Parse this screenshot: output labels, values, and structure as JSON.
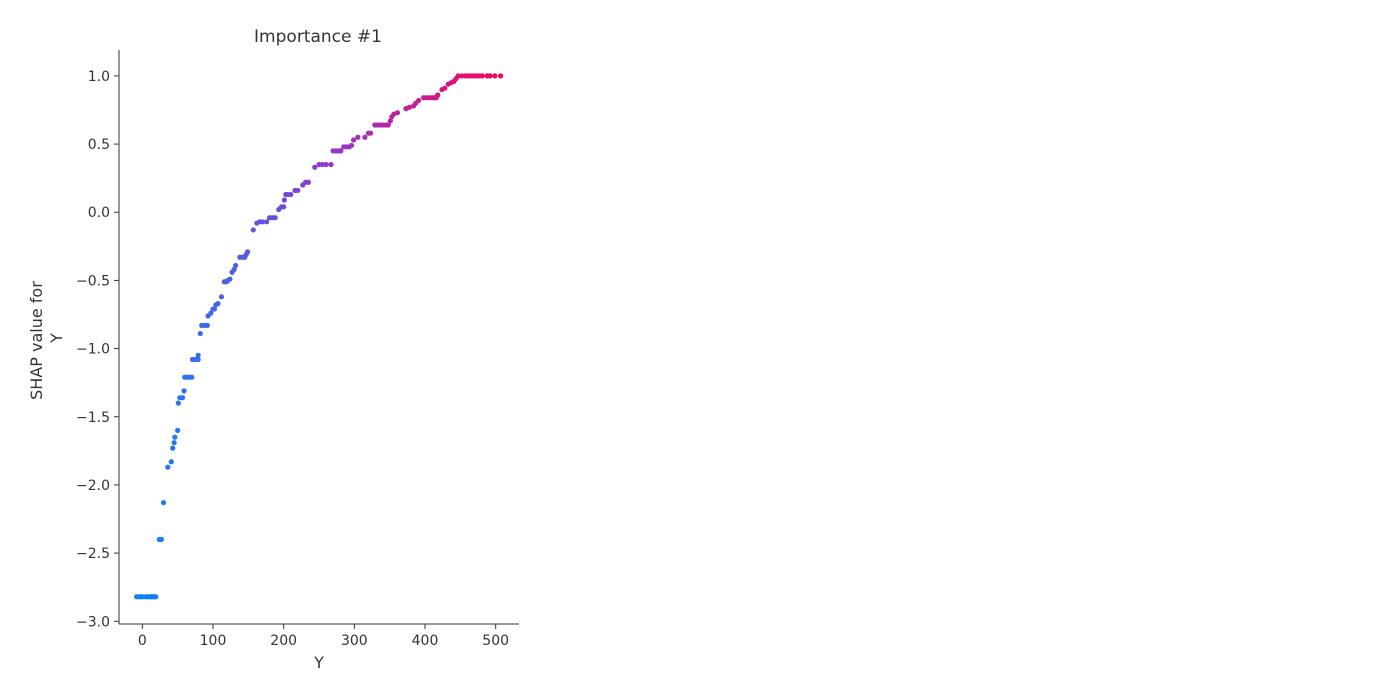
{
  "chart_data": {
    "type": "scatter",
    "title": "Importance #1",
    "xlabel": "Y",
    "ylabel_lines": [
      "SHAP value for",
      "Y"
    ],
    "xlim": [
      -33,
      533
    ],
    "ylim": [
      -3.02,
      1.19
    ],
    "xticks": [
      0,
      100,
      200,
      300,
      400,
      500
    ],
    "xtick_labels": [
      "0",
      "100",
      "200",
      "300",
      "400",
      "500"
    ],
    "yticks": [
      -3.0,
      -2.5,
      -2.0,
      -1.5,
      -1.0,
      -0.5,
      0.0,
      0.5,
      1.0
    ],
    "ytick_labels": [
      "−3.0",
      "−2.5",
      "−2.0",
      "−1.5",
      "−1.0",
      "−0.5",
      "0.0",
      "0.5",
      "1.0"
    ],
    "grid": false,
    "color_low": "#008bfb",
    "color_mid": "#8a3cd0",
    "color_high": "#ff0052",
    "points": [
      [
        -8,
        -2.82
      ],
      [
        -5,
        -2.82
      ],
      [
        -2,
        -2.82
      ],
      [
        0,
        -2.82
      ],
      [
        5,
        -2.82
      ],
      [
        8,
        -2.82
      ],
      [
        11,
        -2.82
      ],
      [
        13,
        -2.82
      ],
      [
        15,
        -2.82
      ],
      [
        17,
        -2.82
      ],
      [
        19,
        -2.82
      ],
      [
        24,
        -2.4
      ],
      [
        27,
        -2.4
      ],
      [
        30,
        -2.13
      ],
      [
        36,
        -1.87
      ],
      [
        41,
        -1.83
      ],
      [
        43,
        -1.73
      ],
      [
        45,
        -1.69
      ],
      [
        46,
        -1.65
      ],
      [
        50,
        -1.6
      ],
      [
        51,
        -1.4
      ],
      [
        53,
        -1.36
      ],
      [
        57,
        -1.36
      ],
      [
        59,
        -1.31
      ],
      [
        60,
        -1.21
      ],
      [
        62,
        -1.21
      ],
      [
        66,
        -1.21
      ],
      [
        70,
        -1.21
      ],
      [
        71,
        -1.08
      ],
      [
        75,
        -1.08
      ],
      [
        79,
        -1.08
      ],
      [
        79,
        -1.05
      ],
      [
        82,
        -0.89
      ],
      [
        84,
        -0.83
      ],
      [
        88,
        -0.83
      ],
      [
        92,
        -0.83
      ],
      [
        93,
        -0.76
      ],
      [
        97,
        -0.74
      ],
      [
        100,
        -0.71
      ],
      [
        102,
        -0.71
      ],
      [
        104,
        -0.68
      ],
      [
        107,
        -0.67
      ],
      [
        112,
        -0.62
      ],
      [
        116,
        -0.51
      ],
      [
        119,
        -0.51
      ],
      [
        121,
        -0.5
      ],
      [
        124,
        -0.49
      ],
      [
        127,
        -0.44
      ],
      [
        130,
        -0.42
      ],
      [
        132,
        -0.39
      ],
      [
        138,
        -0.33
      ],
      [
        142,
        -0.33
      ],
      [
        145,
        -0.33
      ],
      [
        147,
        -0.31
      ],
      [
        149,
        -0.29
      ],
      [
        157,
        -0.13
      ],
      [
        162,
        -0.08
      ],
      [
        166,
        -0.07
      ],
      [
        170,
        -0.07
      ],
      [
        176,
        -0.07
      ],
      [
        180,
        -0.04
      ],
      [
        184,
        -0.04
      ],
      [
        188,
        -0.04
      ],
      [
        193,
        0.02
      ],
      [
        197,
        0.04
      ],
      [
        200,
        0.04
      ],
      [
        201,
        0.09
      ],
      [
        203,
        0.13
      ],
      [
        206,
        0.13
      ],
      [
        210,
        0.13
      ],
      [
        216,
        0.16
      ],
      [
        220,
        0.16
      ],
      [
        227,
        0.2
      ],
      [
        231,
        0.22
      ],
      [
        235,
        0.22
      ],
      [
        244,
        0.33
      ],
      [
        250,
        0.35
      ],
      [
        255,
        0.35
      ],
      [
        260,
        0.35
      ],
      [
        267,
        0.35
      ],
      [
        270,
        0.45
      ],
      [
        274,
        0.45
      ],
      [
        278,
        0.45
      ],
      [
        281,
        0.45
      ],
      [
        285,
        0.48
      ],
      [
        289,
        0.48
      ],
      [
        293,
        0.48
      ],
      [
        296,
        0.49
      ],
      [
        299,
        0.53
      ],
      [
        305,
        0.55
      ],
      [
        315,
        0.55
      ],
      [
        320,
        0.58
      ],
      [
        323,
        0.58
      ],
      [
        329,
        0.64
      ],
      [
        333,
        0.64
      ],
      [
        337,
        0.64
      ],
      [
        341,
        0.64
      ],
      [
        345,
        0.64
      ],
      [
        348,
        0.64
      ],
      [
        351,
        0.67
      ],
      [
        353,
        0.7
      ],
      [
        356,
        0.72
      ],
      [
        361,
        0.73
      ],
      [
        373,
        0.76
      ],
      [
        378,
        0.77
      ],
      [
        384,
        0.78
      ],
      [
        387,
        0.8
      ],
      [
        391,
        0.82
      ],
      [
        398,
        0.84
      ],
      [
        402,
        0.84
      ],
      [
        406,
        0.84
      ],
      [
        410,
        0.84
      ],
      [
        413,
        0.84
      ],
      [
        416,
        0.84
      ],
      [
        418,
        0.86
      ],
      [
        424,
        0.9
      ],
      [
        428,
        0.91
      ],
      [
        433,
        0.94
      ],
      [
        437,
        0.95
      ],
      [
        441,
        0.96
      ],
      [
        444,
        0.98
      ],
      [
        447,
        1.0
      ],
      [
        452,
        1.0
      ],
      [
        457,
        1.0
      ],
      [
        461,
        1.0
      ],
      [
        465,
        1.0
      ],
      [
        469,
        1.0
      ],
      [
        473,
        1.0
      ],
      [
        477,
        1.0
      ],
      [
        481,
        1.0
      ],
      [
        488,
        1.0
      ],
      [
        492,
        1.0
      ],
      [
        499,
        1.0
      ],
      [
        507,
        1.0
      ]
    ]
  }
}
